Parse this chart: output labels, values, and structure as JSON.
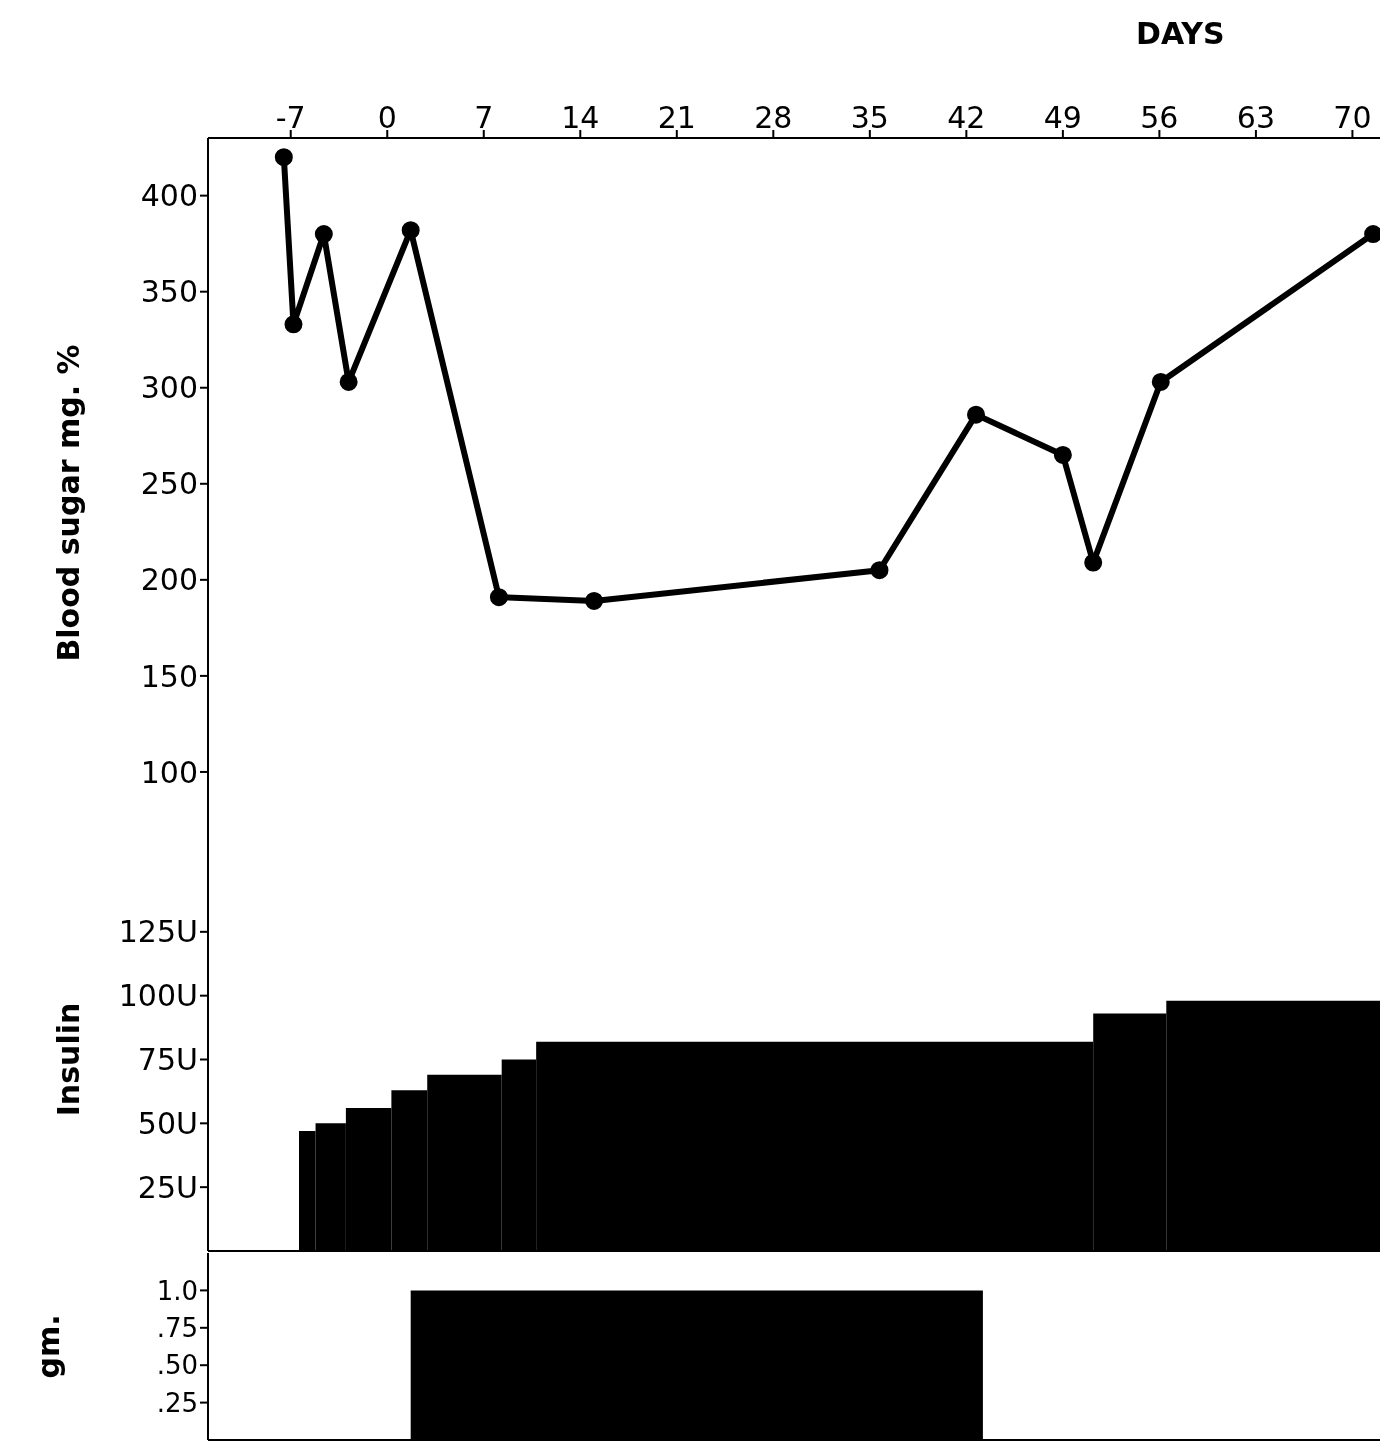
{
  "chart_data": [
    {
      "type": "line",
      "ylabel": "Blood sugar mg. %",
      "xlabel": "DAYS",
      "xlim": [
        -13,
        72
      ],
      "xticks": [
        -7,
        0,
        7,
        14,
        21,
        28,
        35,
        42,
        49,
        56,
        63,
        70
      ],
      "ylim": [
        50,
        430
      ],
      "yticks": [
        100,
        150,
        200,
        250,
        300,
        350,
        400
      ],
      "marker": "circle",
      "series": [
        {
          "color": "#000000",
          "x": [
            -7.5,
            -6.8,
            -4.6,
            -2.8,
            1.7,
            8.1,
            15,
            35.7,
            42.7,
            49,
            51.2,
            56.1,
            71.5
          ],
          "values": [
            420,
            333,
            380,
            303,
            382,
            191,
            189,
            205,
            286,
            265,
            209,
            303,
            380
          ]
        }
      ]
    },
    {
      "type": "histogram",
      "ylabel": "Insulin",
      "xlim": [
        -13,
        72
      ],
      "ylim": [
        0,
        150
      ],
      "tick_labels": "y",
      "color": "#000000",
      "yticks": [
        {
          "value": 25,
          "label": "25U"
        },
        {
          "value": 50,
          "label": "50U"
        },
        {
          "value": 75,
          "label": "75U"
        },
        {
          "value": 100,
          "label": "100U"
        },
        {
          "value": 125,
          "label": "125U"
        }
      ],
      "bins": [
        -6.4,
        -5.2,
        -3,
        0.3,
        2.9,
        8.3,
        10.8,
        51.2,
        56.5,
        72
      ],
      "values": [
        47,
        50,
        56,
        63,
        69,
        75,
        82,
        93,
        98
      ]
    },
    {
      "type": "histogram",
      "ylabel": "gm.",
      "xlim": [
        -13,
        72
      ],
      "ylim": [
        0,
        1.25
      ],
      "tick_labels": "y",
      "color": "#000000",
      "yticks": [
        {
          "value": 1,
          "label": "1.0"
        },
        {
          "value": 0.75,
          "label": ".75"
        },
        {
          "value": 0.5,
          "label": ".50"
        },
        {
          "value": 0.25,
          "label": ".25"
        }
      ],
      "bins": [
        1.7,
        43.2
      ],
      "values": [
        1.0
      ]
    }
  ]
}
